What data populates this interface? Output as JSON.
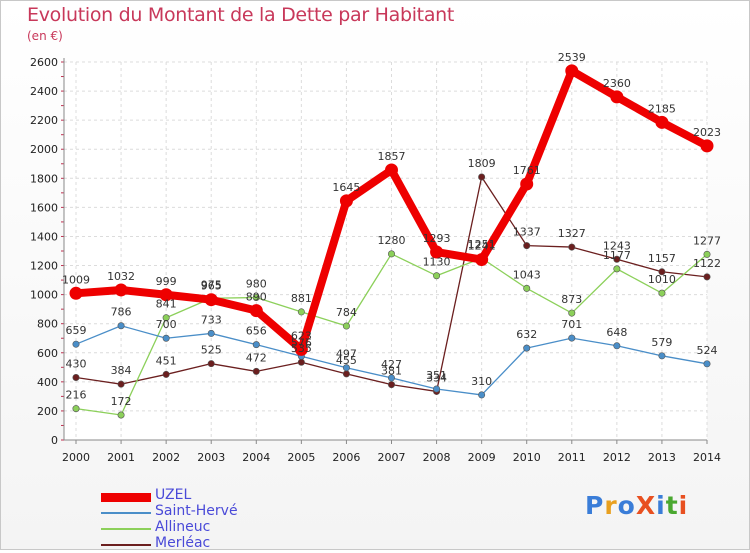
{
  "title": "Evolution du Montant de la Dette par Habitant",
  "unit": "(en €)",
  "logo": {
    "text": "ProXiti",
    "colors": [
      "#3a7dd8",
      "#e8a020",
      "#3a7dd8",
      "#e85020",
      "#3a7dd8",
      "#4aa830",
      "#e85020"
    ]
  },
  "chart_data": {
    "type": "line",
    "title": "Evolution du Montant de la Dette par Habitant",
    "ylabel": "(en €)",
    "x": [
      "2000",
      "2001",
      "2002",
      "2003",
      "2004",
      "2005",
      "2006",
      "2007",
      "2008",
      "2009",
      "2010",
      "2011",
      "2012",
      "2013",
      "2014"
    ],
    "ylim": [
      0,
      2600
    ],
    "yticks": [
      0,
      200,
      400,
      600,
      800,
      1000,
      1200,
      1400,
      1600,
      1800,
      2000,
      2200,
      2400,
      2600
    ],
    "grid": true,
    "series": [
      {
        "name": "UZEL",
        "color": "#ee0000",
        "values": [
          1009,
          1032,
          999,
          965,
          890,
          623,
          1645,
          1857,
          1293,
          1241,
          1761,
          2539,
          2360,
          2185,
          2023
        ]
      },
      {
        "name": "Saint-Hervé",
        "color": "#4a8ec8",
        "values": [
          659,
          786,
          700,
          733,
          656,
          576,
          497,
          427,
          351,
          310,
          632,
          701,
          648,
          579,
          524
        ]
      },
      {
        "name": "Allineuc",
        "color": "#8cd05a",
        "values": [
          216,
          172,
          841,
          975,
          980,
          881,
          784,
          1280,
          1130,
          1251,
          1043,
          873,
          1177,
          1010,
          1277
        ]
      },
      {
        "name": "Merléac",
        "color": "#6b1f1f",
        "values": [
          430,
          384,
          451,
          525,
          472,
          535,
          455,
          381,
          334,
          1809,
          1337,
          1327,
          1243,
          1157,
          1122
        ]
      }
    ]
  }
}
